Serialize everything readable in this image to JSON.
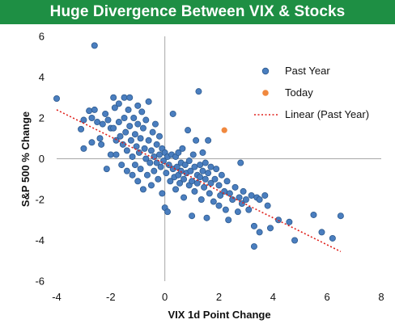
{
  "title": "Huge Divergence Between VIX & Stocks",
  "chart_data": {
    "type": "scatter",
    "title": "Huge Divergence Between VIX & Stocks",
    "xlabel": "VIX 1d Point Change",
    "ylabel": "S&P 500 % Change",
    "xlim": [
      -4,
      8
    ],
    "ylim": [
      -6,
      6
    ],
    "xticks": [
      "-4",
      "-2",
      "0",
      "2",
      "4",
      "6",
      "8"
    ],
    "yticks": [
      "6",
      "4",
      "2",
      "0",
      "-2",
      "-4",
      "-6"
    ],
    "grid": false,
    "legend_position": "top-right",
    "series": [
      {
        "name": "Past Year",
        "color": "#4a7ebf",
        "points": [
          [
            -4.0,
            2.95
          ],
          [
            -2.6,
            5.55
          ],
          [
            -3.1,
            1.45
          ],
          [
            -3.0,
            1.9
          ],
          [
            -3.0,
            0.5
          ],
          [
            -2.8,
            2.35
          ],
          [
            -2.7,
            2.0
          ],
          [
            -2.7,
            0.8
          ],
          [
            -2.6,
            2.4
          ],
          [
            -2.5,
            1.8
          ],
          [
            -2.4,
            1.0
          ],
          [
            -2.35,
            0.7
          ],
          [
            -2.3,
            1.7
          ],
          [
            -2.2,
            2.2
          ],
          [
            -2.15,
            -0.5
          ],
          [
            -2.1,
            1.9
          ],
          [
            -2.0,
            1.5
          ],
          [
            -2.0,
            0.2
          ],
          [
            -1.9,
            3.0
          ],
          [
            -1.9,
            1.5
          ],
          [
            -1.85,
            2.5
          ],
          [
            -1.8,
            0.9
          ],
          [
            -1.8,
            0.2
          ],
          [
            -1.7,
            2.7
          ],
          [
            -1.7,
            1.8
          ],
          [
            -1.65,
            1.1
          ],
          [
            -1.6,
            -0.3
          ],
          [
            -1.55,
            0.7
          ],
          [
            -1.5,
            3.0
          ],
          [
            -1.5,
            2.0
          ],
          [
            -1.45,
            1.3
          ],
          [
            -1.4,
            0.4
          ],
          [
            -1.4,
            -0.6
          ],
          [
            -1.35,
            2.4
          ],
          [
            -1.3,
            3.0
          ],
          [
            -1.3,
            1.6
          ],
          [
            -1.25,
            0.9
          ],
          [
            -1.2,
            0.1
          ],
          [
            -1.2,
            -0.8
          ],
          [
            -1.15,
            2.0
          ],
          [
            -1.1,
            1.2
          ],
          [
            -1.1,
            -0.3
          ],
          [
            -1.05,
            0.6
          ],
          [
            -1.0,
            2.6
          ],
          [
            -1.0,
            1.7
          ],
          [
            -1.0,
            -1.1
          ],
          [
            -0.95,
            0.3
          ],
          [
            -0.9,
            1.0
          ],
          [
            -0.9,
            -0.5
          ],
          [
            -0.85,
            2.3
          ],
          [
            -0.8,
            1.5
          ],
          [
            -0.8,
            -1.5
          ],
          [
            -0.75,
            0.5
          ],
          [
            -0.7,
            0.0
          ],
          [
            -0.7,
            1.9
          ],
          [
            -0.65,
            -0.8
          ],
          [
            -0.6,
            0.9
          ],
          [
            -0.6,
            2.8
          ],
          [
            -0.55,
            -0.2
          ],
          [
            -0.5,
            0.4
          ],
          [
            -0.5,
            -1.3
          ],
          [
            -0.45,
            1.3
          ],
          [
            -0.4,
            0.1
          ],
          [
            -0.4,
            -0.6
          ],
          [
            -0.35,
            1.7
          ],
          [
            -0.3,
            -0.2
          ],
          [
            -0.3,
            0.7
          ],
          [
            -0.25,
            -1.0
          ],
          [
            -0.2,
            0.2
          ],
          [
            -0.2,
            1.1
          ],
          [
            -0.15,
            -0.4
          ],
          [
            -0.1,
            0.5
          ],
          [
            -0.1,
            -1.7
          ],
          [
            -0.05,
            -0.1
          ],
          [
            0.0,
            0.3
          ],
          [
            0.0,
            -2.4
          ],
          [
            0.05,
            -0.7
          ],
          [
            0.1,
            0.1
          ],
          [
            0.1,
            -2.6
          ],
          [
            0.15,
            -0.3
          ],
          [
            0.2,
            -1.1
          ],
          [
            0.25,
            0.2
          ],
          [
            0.3,
            -0.5
          ],
          [
            0.3,
            2.2
          ],
          [
            0.35,
            -0.9
          ],
          [
            0.4,
            0.1
          ],
          [
            0.4,
            -1.5
          ],
          [
            0.45,
            -0.4
          ],
          [
            0.5,
            0.3
          ],
          [
            0.5,
            -0.8
          ],
          [
            0.55,
            -1.2
          ],
          [
            0.6,
            -0.2
          ],
          [
            0.6,
            -0.6
          ],
          [
            0.65,
            0.5
          ],
          [
            0.7,
            -1.0
          ],
          [
            0.7,
            -1.9
          ],
          [
            0.75,
            -0.3
          ],
          [
            0.8,
            -0.7
          ],
          [
            0.85,
            1.4
          ],
          [
            0.9,
            -1.3
          ],
          [
            0.9,
            -0.1
          ],
          [
            0.95,
            -0.6
          ],
          [
            1.0,
            -2.8
          ],
          [
            1.0,
            -1.1
          ],
          [
            1.05,
            0.2
          ],
          [
            1.1,
            -0.4
          ],
          [
            1.1,
            -1.6
          ],
          [
            1.15,
            0.9
          ],
          [
            1.2,
            -0.8
          ],
          [
            1.2,
            -1.2
          ],
          [
            1.25,
            3.3
          ],
          [
            1.3,
            -0.3
          ],
          [
            1.3,
            -0.9
          ],
          [
            1.35,
            -2.0
          ],
          [
            1.4,
            -0.6
          ],
          [
            1.4,
            0.3
          ],
          [
            1.45,
            -1.4
          ],
          [
            1.5,
            -0.2
          ],
          [
            1.5,
            -1.0
          ],
          [
            1.55,
            -2.9
          ],
          [
            1.6,
            0.9
          ],
          [
            1.6,
            -0.7
          ],
          [
            1.65,
            -1.7
          ],
          [
            1.7,
            -0.4
          ],
          [
            1.7,
            -1.2
          ],
          [
            1.8,
            -2.1
          ],
          [
            1.85,
            -1.0
          ],
          [
            1.9,
            -0.5
          ],
          [
            2.0,
            -1.3
          ],
          [
            2.0,
            -2.3
          ],
          [
            2.05,
            -1.8
          ],
          [
            2.1,
            -0.8
          ],
          [
            2.2,
            -1.6
          ],
          [
            2.25,
            -2.5
          ],
          [
            2.3,
            -1.1
          ],
          [
            2.35,
            -3.0
          ],
          [
            2.4,
            -1.7
          ],
          [
            2.5,
            -2.0
          ],
          [
            2.6,
            -1.4
          ],
          [
            2.7,
            -2.6
          ],
          [
            2.75,
            -1.9
          ],
          [
            2.8,
            -0.2
          ],
          [
            2.85,
            -2.2
          ],
          [
            2.9,
            -1.6
          ],
          [
            3.0,
            -2.0
          ],
          [
            3.1,
            -2.5
          ],
          [
            3.2,
            -1.8
          ],
          [
            3.3,
            -3.3
          ],
          [
            3.3,
            -4.3
          ],
          [
            3.4,
            -1.9
          ],
          [
            3.5,
            -2.0
          ],
          [
            3.5,
            -3.6
          ],
          [
            3.7,
            -1.8
          ],
          [
            3.8,
            -2.3
          ],
          [
            3.9,
            -3.4
          ],
          [
            4.2,
            -3.0
          ],
          [
            4.6,
            -3.1
          ],
          [
            4.8,
            -4.0
          ],
          [
            5.5,
            -2.75
          ],
          [
            5.8,
            -3.6
          ],
          [
            6.2,
            -3.9
          ],
          [
            6.5,
            -2.8
          ]
        ]
      },
      {
        "name": "Today",
        "color": "#f0883e",
        "points": [
          [
            2.2,
            1.4
          ]
        ]
      },
      {
        "name": "Linear (Past Year)",
        "color": "#e0201b",
        "style": "dotted-line",
        "line": [
          [
            -4.0,
            2.4
          ],
          [
            6.5,
            -4.55
          ]
        ]
      }
    ]
  }
}
